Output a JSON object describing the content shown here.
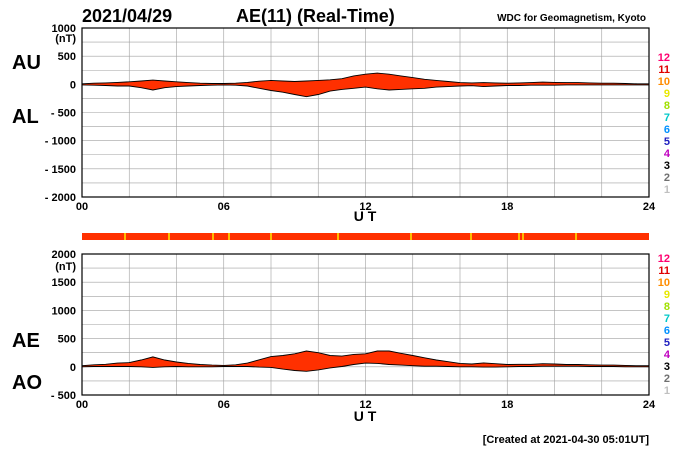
{
  "header": {
    "date": "2021/04/29",
    "title": "AE(11) (Real-Time)",
    "source": "WDC for Geomagnetism, Kyoto"
  },
  "footer": {
    "created": "[Created at 2021-04-30 05:01UT]"
  },
  "colors": {
    "fill": "#ff3000",
    "stripe": "#ff3000",
    "stripe_alt": "#ffbb00",
    "grid": "#a0a0a0"
  },
  "station_counts": {
    "labels": [
      "12",
      "11",
      "10",
      "9",
      "8",
      "7",
      "6",
      "5",
      "4",
      "3",
      "2",
      "1"
    ],
    "colors": [
      "#ff0070",
      "#e00000",
      "#ff8c00",
      "#e8e800",
      "#a0e000",
      "#00c8c8",
      "#0090ff",
      "#2020c0",
      "#c000c0",
      "#000000",
      "#707070",
      "#c0c0c0"
    ]
  },
  "chart_data": [
    {
      "type": "area",
      "panel": "AU/AL",
      "labels": {
        "upper": "AU",
        "lower": "AL"
      },
      "unit": "(nT)",
      "xlabel": "U T",
      "xlim": [
        0,
        24
      ],
      "xticks": [
        0,
        6,
        12,
        18,
        24
      ],
      "xtick_labels": [
        "00",
        "06",
        "12",
        "18",
        "24"
      ],
      "ylim": [
        -2000,
        1000
      ],
      "yticks": [
        1000,
        500,
        0,
        -500,
        -1000,
        -1500,
        -2000
      ],
      "ytick_labels": [
        "1000",
        "500",
        "0",
        "- 500",
        "- 1000",
        "- 1500",
        "- 2000"
      ],
      "grid": true,
      "series": [
        {
          "name": "AU",
          "x": [
            0,
            0.5,
            1,
            1.5,
            2,
            2.5,
            3,
            3.5,
            4,
            4.5,
            5,
            5.5,
            6,
            6.5,
            7,
            7.5,
            8,
            8.5,
            9,
            9.5,
            10,
            10.5,
            11,
            11.5,
            12,
            12.5,
            13,
            13.5,
            14,
            14.5,
            15,
            15.5,
            16,
            16.5,
            17,
            17.5,
            18,
            18.5,
            19,
            19.5,
            20,
            20.5,
            21,
            21.5,
            22,
            22.5,
            23,
            23.5,
            24
          ],
          "values": [
            10,
            20,
            25,
            35,
            45,
            60,
            75,
            60,
            45,
            30,
            20,
            15,
            15,
            20,
            35,
            55,
            70,
            60,
            50,
            60,
            70,
            80,
            100,
            150,
            180,
            200,
            180,
            150,
            120,
            90,
            70,
            50,
            30,
            25,
            30,
            25,
            20,
            25,
            30,
            40,
            35,
            30,
            30,
            25,
            20,
            20,
            15,
            10,
            10
          ]
        },
        {
          "name": "AL",
          "x": [
            0,
            0.5,
            1,
            1.5,
            2,
            2.5,
            3,
            3.5,
            4,
            4.5,
            5,
            5.5,
            6,
            6.5,
            7,
            7.5,
            8,
            8.5,
            9,
            9.5,
            10,
            10.5,
            11,
            11.5,
            12,
            12.5,
            13,
            13.5,
            14,
            14.5,
            15,
            15.5,
            16,
            16.5,
            17,
            17.5,
            18,
            18.5,
            19,
            19.5,
            20,
            20.5,
            21,
            21.5,
            22,
            22.5,
            23,
            23.5,
            24
          ],
          "values": [
            -10,
            -15,
            -20,
            -30,
            -30,
            -60,
            -100,
            -60,
            -40,
            -30,
            -20,
            -15,
            -10,
            -15,
            -30,
            -70,
            -110,
            -140,
            -180,
            -220,
            -180,
            -120,
            -90,
            -70,
            -50,
            -80,
            -100,
            -90,
            -80,
            -70,
            -50,
            -40,
            -30,
            -25,
            -40,
            -30,
            -20,
            -20,
            -15,
            -15,
            -15,
            -10,
            -10,
            -10,
            -10,
            -10,
            -10,
            -10,
            -10
          ]
        }
      ]
    },
    {
      "type": "area",
      "panel": "AE/AO",
      "labels": {
        "upper": "AE",
        "lower": "AO"
      },
      "unit": "(nT)",
      "xlabel": "U T",
      "xlim": [
        0,
        24
      ],
      "xticks": [
        0,
        6,
        12,
        18,
        24
      ],
      "xtick_labels": [
        "00",
        "06",
        "12",
        "18",
        "24"
      ],
      "ylim": [
        -500,
        2000
      ],
      "yticks": [
        2000,
        1500,
        1000,
        500,
        0,
        -500
      ],
      "ytick_labels": [
        "2000",
        "1500",
        "1000",
        "500",
        "0",
        "- 500"
      ],
      "grid": true,
      "series": [
        {
          "name": "AE",
          "x": [
            0,
            0.5,
            1,
            1.5,
            2,
            2.5,
            3,
            3.5,
            4,
            4.5,
            5,
            5.5,
            6,
            6.5,
            7,
            7.5,
            8,
            8.5,
            9,
            9.5,
            10,
            10.5,
            11,
            11.5,
            12,
            12.5,
            13,
            13.5,
            14,
            14.5,
            15,
            15.5,
            16,
            16.5,
            17,
            17.5,
            18,
            18.5,
            19,
            19.5,
            20,
            20.5,
            21,
            21.5,
            22,
            22.5,
            23,
            23.5,
            24
          ],
          "values": [
            20,
            35,
            45,
            65,
            75,
            120,
            175,
            120,
            85,
            60,
            40,
            30,
            25,
            35,
            65,
            125,
            180,
            200,
            230,
            280,
            250,
            200,
            190,
            220,
            230,
            280,
            280,
            240,
            200,
            160,
            120,
            90,
            60,
            50,
            70,
            55,
            40,
            45,
            45,
            55,
            50,
            40,
            40,
            35,
            30,
            30,
            25,
            20,
            20
          ]
        },
        {
          "name": "AO",
          "x": [
            0,
            0.5,
            1,
            1.5,
            2,
            2.5,
            3,
            3.5,
            4,
            4.5,
            5,
            5.5,
            6,
            6.5,
            7,
            7.5,
            8,
            8.5,
            9,
            9.5,
            10,
            10.5,
            11,
            11.5,
            12,
            12.5,
            13,
            13.5,
            14,
            14.5,
            15,
            15.5,
            16,
            16.5,
            17,
            17.5,
            18,
            18.5,
            19,
            19.5,
            20,
            20.5,
            21,
            21.5,
            22,
            22.5,
            23,
            23.5,
            24
          ],
          "values": [
            0,
            5,
            5,
            5,
            5,
            0,
            -10,
            0,
            5,
            0,
            0,
            0,
            5,
            5,
            5,
            -5,
            -10,
            -40,
            -65,
            -80,
            -55,
            -20,
            5,
            40,
            65,
            60,
            40,
            30,
            20,
            10,
            10,
            5,
            0,
            0,
            -5,
            -5,
            0,
            5,
            5,
            10,
            10,
            10,
            10,
            5,
            5,
            5,
            0,
            0,
            0
          ]
        }
      ]
    }
  ]
}
